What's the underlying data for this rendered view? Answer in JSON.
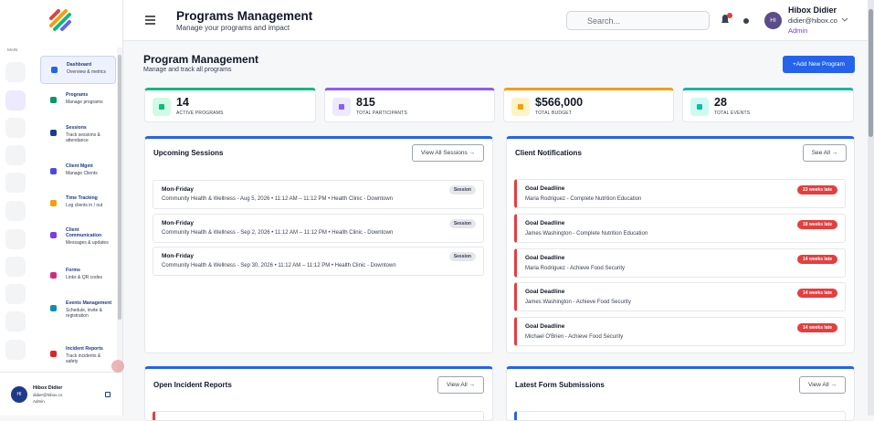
{
  "header": {
    "title": "Programs Management",
    "subtitle": "Manage your programs and impact",
    "search_placeholder": "Search...",
    "user": {
      "initials": "HI",
      "name": "Hibox Didier",
      "email": "didier@hibox.co",
      "role": "Admin"
    }
  },
  "sidebar": {
    "section": "MAIN",
    "nav": [
      {
        "label": "Dashboard",
        "description": "Overview & metrics"
      },
      {
        "label": "Programs",
        "description": "Manage programs"
      },
      {
        "label": "Sessions",
        "description": "Track sessions & attendance"
      },
      {
        "label": "Client Mgmt",
        "description": "Manage Clients"
      },
      {
        "label": "Time Tracking",
        "description": "Log clients in / out"
      },
      {
        "label": "Client Communication",
        "description": "Messages & updates"
      },
      {
        "label": "Forms",
        "description": "Links & QR codes"
      },
      {
        "label": "Events Management",
        "description": "Schedule, invite & registration"
      },
      {
        "label": "Incident Reports",
        "description": "Track incidents & safety"
      }
    ],
    "user": {
      "initials": "HI",
      "name": "Hibox Didier",
      "email": "didier@hibox.co",
      "role": "Admin"
    }
  },
  "main": {
    "title": "Program Management",
    "subtitle": "Manage and track all programs",
    "add_button": "+Add New Program",
    "stats": [
      {
        "value": "14",
        "label": "ACTIVE PROGRAMS"
      },
      {
        "value": "815",
        "label": "TOTAL PARTICIPANTS"
      },
      {
        "value": "$566,000",
        "label": "TOTAL BUDGET"
      },
      {
        "value": "28",
        "label": "TOTAL EVENTS"
      }
    ],
    "upcoming_sessions": {
      "title": "Upcoming Sessions",
      "button": "View All Sessions →",
      "items": [
        {
          "title": "Mon-Friday",
          "detail": "Community Health & Wellness - Aug 5, 2026 • 11:12 AM – 11:12 PM • Health Clinic - Downtown",
          "badge": "Session"
        },
        {
          "title": "Mon-Friday",
          "detail": "Community Health & Wellness - Sep 2, 2026 • 11:12 AM – 11:12 PM • Health Clinic - Downtown",
          "badge": "Session"
        },
        {
          "title": "Mon-Friday",
          "detail": "Community Health & Wellness - Sep 30, 2026 • 11:12 AM – 11:12 PM • Health Clinic - Downtown",
          "badge": "Session"
        }
      ]
    },
    "client_notifications": {
      "title": "Client Notifications",
      "button": "See All →",
      "items": [
        {
          "title": "Goal Deadline",
          "detail": "Maria Rodriguez - Complete Nutrition Education",
          "badge": "23 weeks late"
        },
        {
          "title": "Goal Deadline",
          "detail": "James Washington - Complete Nutrition Education",
          "badge": "18 weeks late"
        },
        {
          "title": "Goal Deadline",
          "detail": "Maria Rodriguez - Achieve Food Security",
          "badge": "14 weeks late"
        },
        {
          "title": "Goal Deadline",
          "detail": "James Washington - Achieve Food Security",
          "badge": "14 weeks late"
        },
        {
          "title": "Goal Deadline",
          "detail": "Michael O'Brien - Achieve Food Security",
          "badge": "14 weeks late"
        }
      ]
    },
    "open_incident_reports": {
      "title": "Open Incident Reports",
      "button": "View All →"
    },
    "latest_form_submissions": {
      "title": "Latest Form Submissions",
      "button": "View All →"
    }
  }
}
